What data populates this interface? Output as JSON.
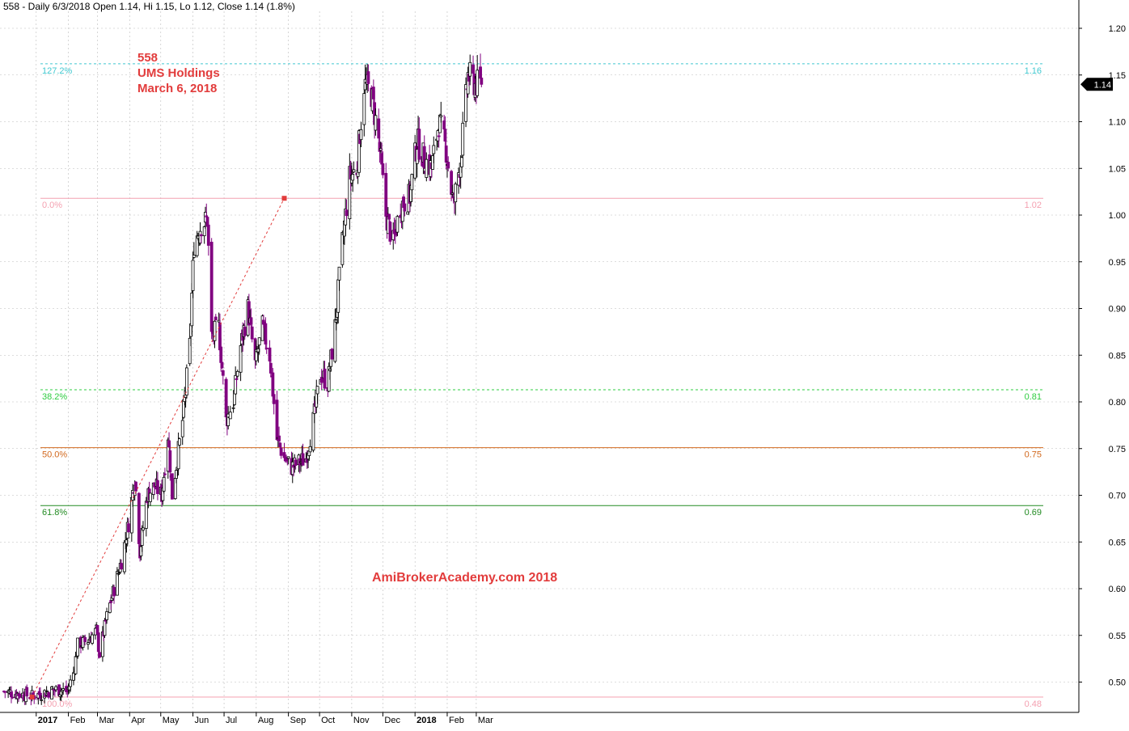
{
  "header": {
    "text": "558 - Daily 6/3/2018 Open 1.14, Hi 1.15, Lo 1.12, Close 1.14 (1.8%)"
  },
  "annotation": {
    "line1": "558",
    "line2": "UMS Holdings",
    "line3": "March 6, 2018"
  },
  "watermark": "AmiBrokerAcademy.com  2018",
  "last_price_label": "1.14",
  "colors": {
    "bull_candle": "#000000",
    "bear_candle": "#800080",
    "fib_127": "#40c8d0",
    "fib_0": "#f4a0b0",
    "fib_382": "#2ecc40",
    "fib_50": "#d2691e",
    "fib_618": "#228b22",
    "fib_100": "#f4a0b0",
    "trend_line": "#e23c3c",
    "annotation": "#e23c3c"
  },
  "chart_data": {
    "type": "candlestick",
    "ylim": [
      0.47,
      1.22
    ],
    "y_ticks": [
      "1.20",
      "1.15",
      "1.10",
      "1.05",
      "1.00",
      "0.95",
      "0.90",
      "0.85",
      "0.80",
      "0.75",
      "0.70",
      "0.65",
      "0.60",
      "0.55",
      "0.50"
    ],
    "x_ticks": [
      "2017",
      "Feb",
      "Mar",
      "Apr",
      "May",
      "Jun",
      "Jul",
      "Aug",
      "Sep",
      "Oct",
      "Nov",
      "Dec",
      "2018",
      "Feb",
      "Mar"
    ],
    "fib_levels": [
      {
        "pct": "127.2%",
        "value": 1.162,
        "price_label": "1.16"
      },
      {
        "pct": "0.0%",
        "value": 1.018,
        "price_label": "1.02"
      },
      {
        "pct": "38.2%",
        "value": 0.813,
        "price_label": "0.81"
      },
      {
        "pct": "50.0%",
        "value": 0.751,
        "price_label": "0.75"
      },
      {
        "pct": "61.8%",
        "value": 0.689,
        "price_label": "0.69"
      },
      {
        "pct": "100.0%",
        "value": 0.484,
        "price_label": "0.48"
      }
    ],
    "trend_line": {
      "start": {
        "x": "2016-12-28",
        "y": 0.484
      },
      "end": {
        "x": "2017-08-28",
        "y": 1.018
      }
    },
    "last_close": 1.14,
    "approx_closes": [
      {
        "date": "2016-12-01",
        "close": 0.49
      },
      {
        "date": "2016-12-28",
        "close": 0.485
      },
      {
        "date": "2017-01-20",
        "close": 0.492
      },
      {
        "date": "2017-01-31",
        "close": 0.49
      },
      {
        "date": "2017-02-06",
        "close": 0.51
      },
      {
        "date": "2017-02-10",
        "close": 0.54
      },
      {
        "date": "2017-02-20",
        "close": 0.545
      },
      {
        "date": "2017-02-28",
        "close": 0.555
      },
      {
        "date": "2017-03-03",
        "close": 0.53
      },
      {
        "date": "2017-03-10",
        "close": 0.57
      },
      {
        "date": "2017-03-17",
        "close": 0.6
      },
      {
        "date": "2017-03-24",
        "close": 0.63
      },
      {
        "date": "2017-03-31",
        "close": 0.67
      },
      {
        "date": "2017-04-06",
        "close": 0.72
      },
      {
        "date": "2017-04-11",
        "close": 0.64
      },
      {
        "date": "2017-04-18",
        "close": 0.7
      },
      {
        "date": "2017-04-25",
        "close": 0.71
      },
      {
        "date": "2017-05-02",
        "close": 0.7
      },
      {
        "date": "2017-05-08",
        "close": 0.765
      },
      {
        "date": "2017-05-12",
        "close": 0.7
      },
      {
        "date": "2017-05-22",
        "close": 0.78
      },
      {
        "date": "2017-05-29",
        "close": 0.86
      },
      {
        "date": "2017-06-02",
        "close": 0.97
      },
      {
        "date": "2017-06-09",
        "close": 0.99
      },
      {
        "date": "2017-06-15",
        "close": 0.995
      },
      {
        "date": "2017-06-19",
        "close": 0.87
      },
      {
        "date": "2017-06-26",
        "close": 0.88
      },
      {
        "date": "2017-07-03",
        "close": 0.78
      },
      {
        "date": "2017-07-10",
        "close": 0.8
      },
      {
        "date": "2017-07-17",
        "close": 0.86
      },
      {
        "date": "2017-07-24",
        "close": 0.9
      },
      {
        "date": "2017-07-31",
        "close": 0.84
      },
      {
        "date": "2017-08-07",
        "close": 0.88
      },
      {
        "date": "2017-08-14",
        "close": 0.85
      },
      {
        "date": "2017-08-21",
        "close": 0.76
      },
      {
        "date": "2017-08-28",
        "close": 0.74
      },
      {
        "date": "2017-09-04",
        "close": 0.73
      },
      {
        "date": "2017-09-11",
        "close": 0.735
      },
      {
        "date": "2017-09-18",
        "close": 0.74
      },
      {
        "date": "2017-09-25",
        "close": 0.78
      },
      {
        "date": "2017-10-02",
        "close": 0.83
      },
      {
        "date": "2017-10-09",
        "close": 0.82
      },
      {
        "date": "2017-10-16",
        "close": 0.88
      },
      {
        "date": "2017-10-23",
        "close": 0.97
      },
      {
        "date": "2017-10-30",
        "close": 1.04
      },
      {
        "date": "2017-11-06",
        "close": 1.05
      },
      {
        "date": "2017-11-13",
        "close": 1.14
      },
      {
        "date": "2017-11-20",
        "close": 1.13
      },
      {
        "date": "2017-11-27",
        "close": 1.08
      },
      {
        "date": "2017-12-04",
        "close": 1.0
      },
      {
        "date": "2017-12-11",
        "close": 0.97
      },
      {
        "date": "2017-12-18",
        "close": 1.01
      },
      {
        "date": "2017-12-27",
        "close": 1.02
      },
      {
        "date": "2018-01-03",
        "close": 1.08
      },
      {
        "date": "2018-01-10",
        "close": 1.06
      },
      {
        "date": "2018-01-17",
        "close": 1.05
      },
      {
        "date": "2018-01-24",
        "close": 1.1
      },
      {
        "date": "2018-01-31",
        "close": 1.07
      },
      {
        "date": "2018-02-07",
        "close": 1.01
      },
      {
        "date": "2018-02-14",
        "close": 1.06
      },
      {
        "date": "2018-02-21",
        "close": 1.15
      },
      {
        "date": "2018-02-28",
        "close": 1.14
      },
      {
        "date": "2018-03-06",
        "close": 1.14
      }
    ]
  }
}
